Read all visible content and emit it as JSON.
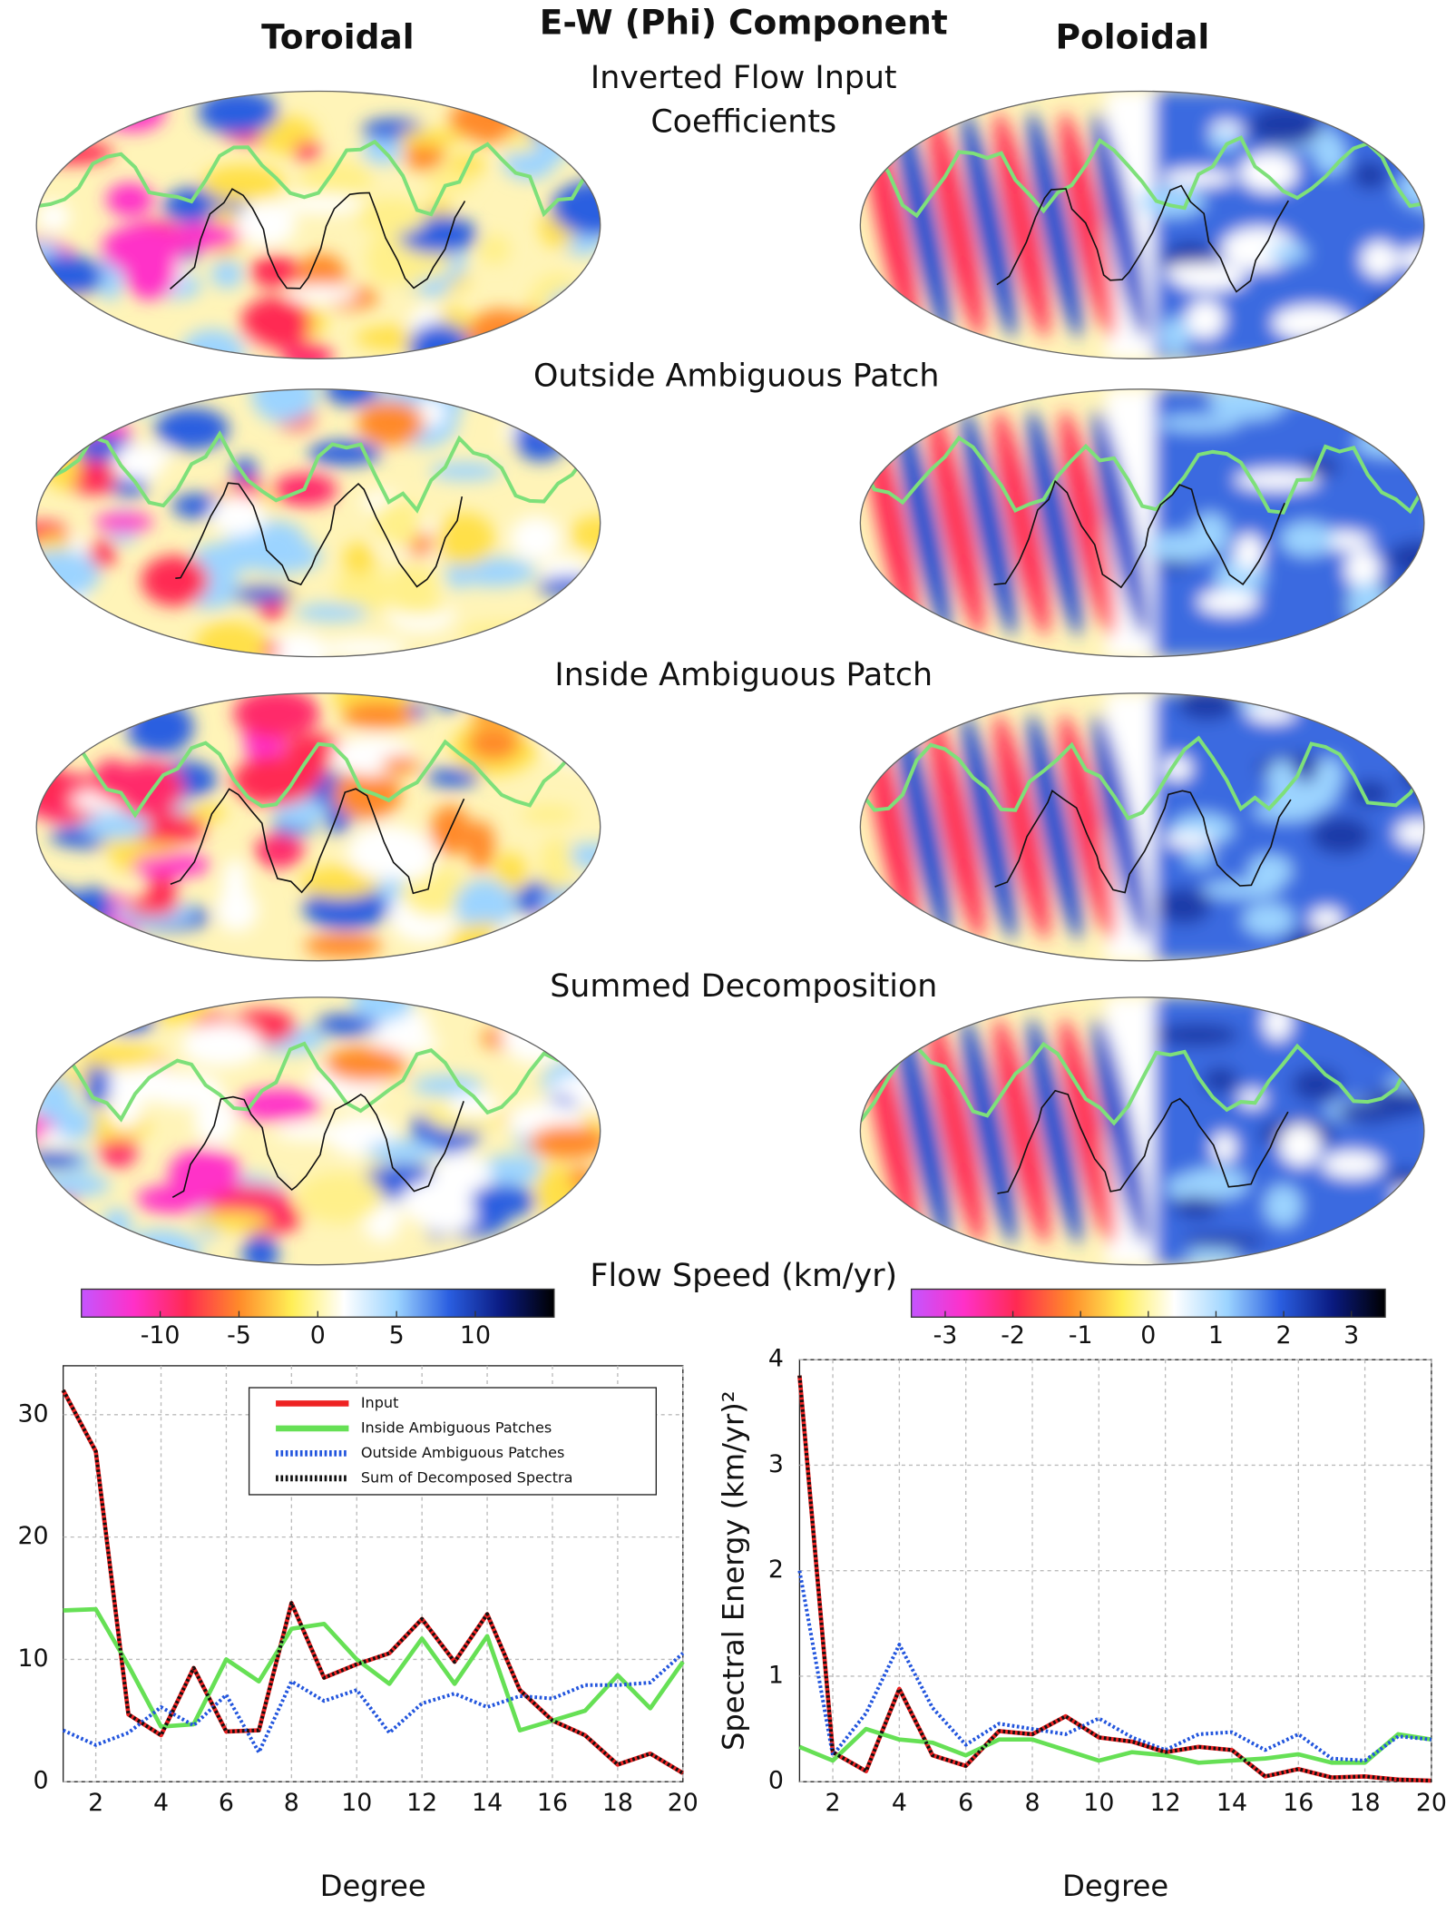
{
  "header": {
    "title": "E-W (Phi) Component",
    "left_column": "Toroidal",
    "right_column": "Poloidal"
  },
  "row_labels": [
    [
      "Inverted Flow Input",
      "Coefficients"
    ],
    [
      "Outside Ambiguous Patch"
    ],
    [
      "Inside Ambiguous Patch"
    ],
    [
      "Summed Decomposition"
    ]
  ],
  "colorbar_label": "Flow Speed (km/yr)",
  "chart_data": [
    {
      "type": "colorbar",
      "clim": [
        -15,
        15
      ],
      "ticks": [
        -10,
        -5,
        0,
        5,
        10
      ],
      "colors": [
        "#c455ff",
        "#ff30c8",
        "#ff2a52",
        "#ff8a2a",
        "#ffee55",
        "#ffffff",
        "#9cd4ff",
        "#2a5ee0",
        "#0a1a80",
        "#000000"
      ]
    },
    {
      "type": "colorbar",
      "clim": [
        -3.5,
        3.5
      ],
      "ticks": [
        -3,
        -2,
        -1,
        0,
        1,
        2,
        3
      ],
      "colors": [
        "#c455ff",
        "#ff30c8",
        "#ff2a52",
        "#ff8a2a",
        "#ffee55",
        "#ffffff",
        "#9cd4ff",
        "#2a5ee0",
        "#0a1a80",
        "#000000"
      ]
    },
    {
      "type": "line",
      "xlabel": "Degree",
      "xlim": [
        1,
        20
      ],
      "xticks": [
        2,
        4,
        6,
        8,
        10,
        12,
        14,
        16,
        18,
        20
      ],
      "ylim": [
        0,
        34
      ],
      "yticks": [
        0,
        10,
        20,
        30
      ],
      "grid": true,
      "legend": "upper right",
      "x": [
        1,
        2,
        3,
        4,
        5,
        6,
        7,
        8,
        9,
        10,
        11,
        12,
        13,
        14,
        15,
        16,
        17,
        18,
        19,
        20
      ],
      "series": [
        {
          "name": "Input",
          "color": "#ee2222",
          "style": "solid",
          "values": [
            32,
            27,
            5.5,
            3.8,
            9.3,
            4.1,
            4.2,
            14.6,
            8.5,
            9.6,
            10.5,
            13.3,
            9.8,
            13.7,
            7.5,
            5,
            3.8,
            1.4,
            2.3,
            0.7
          ]
        },
        {
          "name": "Inside Ambiguous Patches",
          "color": "#66e055",
          "style": "solid",
          "values": [
            14,
            14.1,
            9.5,
            4.5,
            4.7,
            10,
            8.2,
            12.5,
            12.9,
            10,
            8,
            11.7,
            8,
            11.9,
            4.2,
            5,
            5.8,
            8.7,
            6,
            9.8
          ]
        },
        {
          "name": "Outside Ambiguous Patches",
          "color": "#2255dd",
          "style": "dotted",
          "values": [
            4.2,
            3,
            4,
            6.1,
            4.6,
            7.1,
            2.4,
            8.2,
            6.6,
            7.5,
            4,
            6.4,
            7.2,
            6.1,
            7,
            6.8,
            7.9,
            7.9,
            8.1,
            10.5
          ]
        },
        {
          "name": "Sum of Decomposed Spectra",
          "color": "#111111",
          "style": "dotted",
          "values": [
            32,
            27,
            5.5,
            3.8,
            9.3,
            4.1,
            4.2,
            14.6,
            8.5,
            9.6,
            10.5,
            13.3,
            9.8,
            13.7,
            7.5,
            5,
            3.8,
            1.4,
            2.3,
            0.7
          ]
        }
      ]
    },
    {
      "type": "line",
      "xlabel": "Degree",
      "ylabel": "Spectral Energy (km/yr)²",
      "xlim": [
        1,
        20
      ],
      "xticks": [
        2,
        4,
        6,
        8,
        10,
        12,
        14,
        16,
        18,
        20
      ],
      "ylim": [
        0,
        4
      ],
      "yticks": [
        0,
        1,
        2,
        3,
        4
      ],
      "grid": true,
      "x": [
        1,
        2,
        3,
        4,
        5,
        6,
        7,
        8,
        9,
        10,
        11,
        12,
        13,
        14,
        15,
        16,
        17,
        18,
        19,
        20
      ],
      "series": [
        {
          "color": "#ee2222",
          "style": "solid",
          "values": [
            3.85,
            0.28,
            0.1,
            0.88,
            0.25,
            0.15,
            0.48,
            0.45,
            0.62,
            0.42,
            0.38,
            0.28,
            0.33,
            0.3,
            0.05,
            0.12,
            0.04,
            0.05,
            0.02,
            0.01
          ]
        },
        {
          "color": "#66e055",
          "style": "solid",
          "values": [
            0.33,
            0.2,
            0.5,
            0.4,
            0.37,
            0.25,
            0.4,
            0.4,
            0.3,
            0.2,
            0.28,
            0.25,
            0.18,
            0.2,
            0.22,
            0.26,
            0.18,
            0.18,
            0.45,
            0.4
          ]
        },
        {
          "color": "#2255dd",
          "style": "dotted",
          "values": [
            2.0,
            0.25,
            0.65,
            1.3,
            0.7,
            0.35,
            0.55,
            0.5,
            0.45,
            0.6,
            0.42,
            0.3,
            0.45,
            0.47,
            0.3,
            0.45,
            0.22,
            0.2,
            0.43,
            0.4
          ]
        },
        {
          "color": "#111111",
          "style": "dotted",
          "values": [
            3.85,
            0.28,
            0.1,
            0.88,
            0.25,
            0.15,
            0.48,
            0.45,
            0.62,
            0.42,
            0.38,
            0.28,
            0.33,
            0.3,
            0.05,
            0.12,
            0.04,
            0.05,
            0.02,
            0.01
          ]
        }
      ]
    }
  ]
}
